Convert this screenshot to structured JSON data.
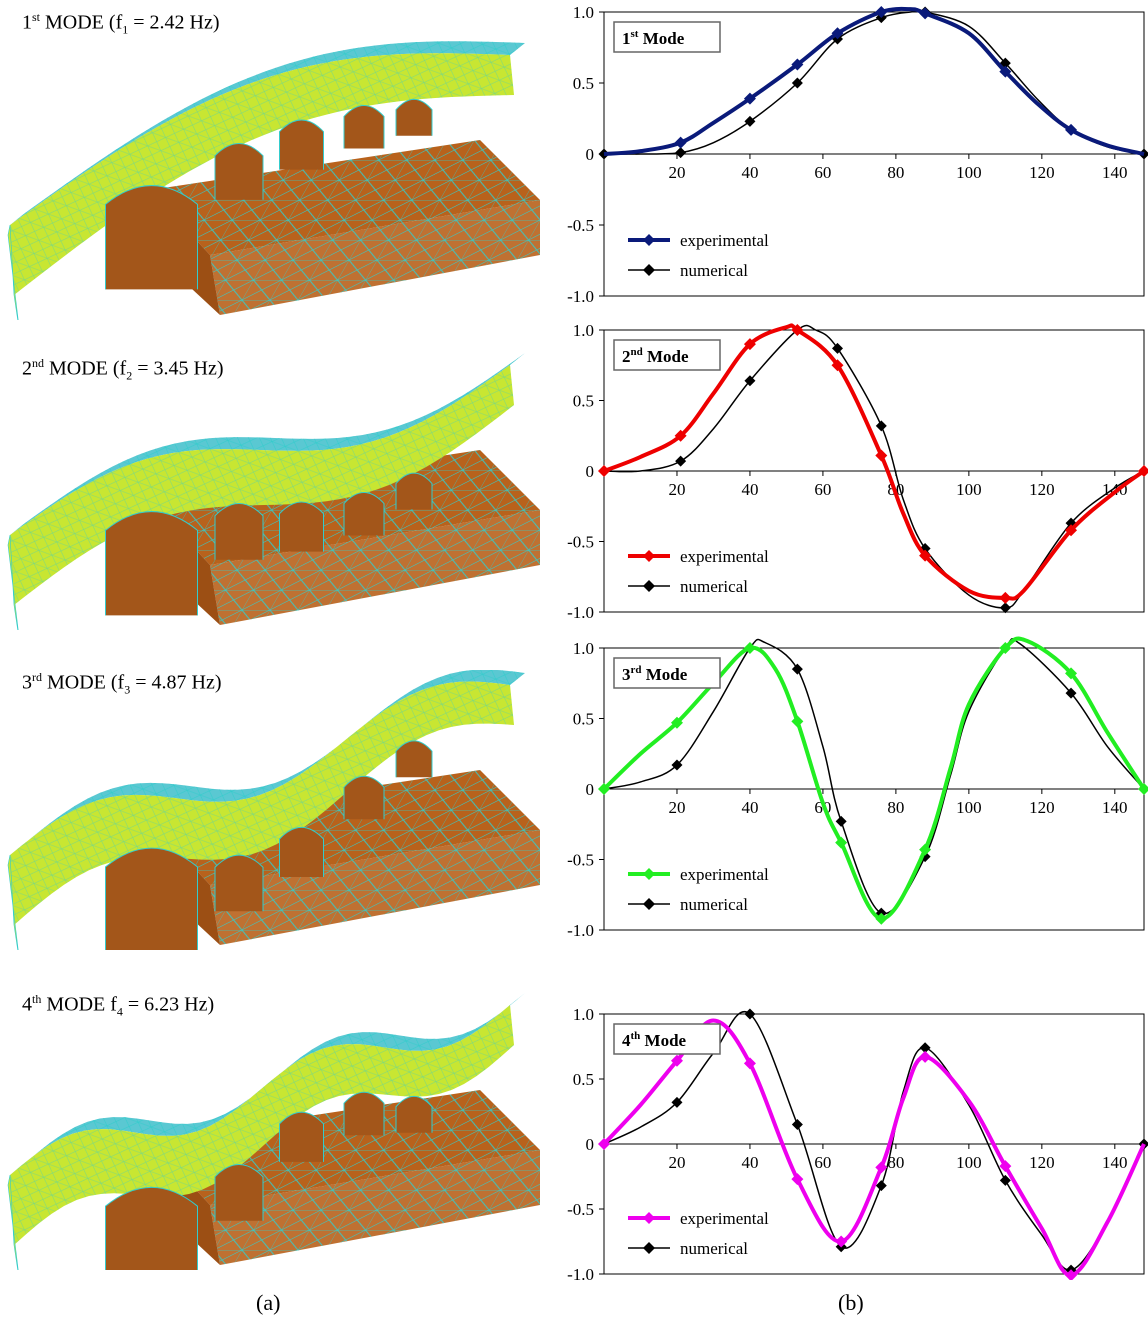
{
  "modes": [
    {
      "label": {
        "pre": "1",
        "sup": "st",
        "mid": " MODE (f",
        "sub": "1",
        "post": " = 2.42 Hz)"
      }
    },
    {
      "label": {
        "pre": "2",
        "sup": "nd",
        "mid": " MODE (f",
        "sub": "2",
        "post": " = 3.45 Hz)"
      }
    },
    {
      "label": {
        "pre": "3",
        "sup": "rd",
        "mid": " MODE (f",
        "sub": "3",
        "post": " = 4.87 Hz)"
      }
    },
    {
      "label": {
        "pre": "4",
        "sup": "th",
        "mid": " MODE f",
        "sub": "4",
        "post": " = 6.23 Hz)"
      }
    }
  ],
  "captions": {
    "a": "(a)",
    "b": "(b)"
  },
  "colors": {
    "mesh_edge": "#33cccc",
    "bridge_fill": "#c8e632",
    "bridge_deck": "#5ac8d2",
    "ground_fill": "#b8621c",
    "numerical": "#000000"
  },
  "chart_data": [
    {
      "type": "line",
      "title": {
        "pre": "1",
        "sup": "st",
        "post": " Mode"
      },
      "xlim": [
        0,
        148
      ],
      "ylim": [
        -1,
        1
      ],
      "xticks": [
        20,
        40,
        60,
        80,
        100,
        120,
        140
      ],
      "yticks": [
        1,
        0.5,
        0,
        -0.5,
        -1
      ],
      "yticklabels": [
        "1.0",
        "0.5",
        "0",
        "-0.5",
        "-1.0"
      ],
      "legend": "bottom-left",
      "series": [
        {
          "name": "experimental",
          "color": "#0a1a7a",
          "x": [
            0,
            10,
            21,
            30,
            40,
            53,
            64,
            76,
            84,
            88,
            100,
            110,
            119,
            128,
            138,
            148
          ],
          "y": [
            0,
            0.02,
            0.08,
            0.22,
            0.39,
            0.63,
            0.85,
            1.0,
            1.02,
            0.99,
            0.85,
            0.58,
            0.35,
            0.17,
            0.06,
            0
          ],
          "markers": [
            21,
            40,
            53,
            64,
            76,
            88,
            110,
            128
          ]
        },
        {
          "name": "numerical",
          "color": "#000000",
          "x": [
            0,
            10,
            21,
            30,
            40,
            53,
            64,
            76,
            84,
            88,
            100,
            110,
            119,
            128,
            138,
            148
          ],
          "y": [
            0,
            0.0,
            0.01,
            0.08,
            0.23,
            0.5,
            0.81,
            0.96,
            1.0,
            1.0,
            0.9,
            0.64,
            0.38,
            0.17,
            0.05,
            0
          ],
          "markers": [
            0,
            21,
            40,
            53,
            64,
            76,
            88,
            110,
            128,
            148
          ]
        }
      ]
    },
    {
      "type": "line",
      "title": {
        "pre": "2",
        "sup": "nd",
        "post": " Mode"
      },
      "xlim": [
        0,
        148
      ],
      "ylim": [
        -1,
        1
      ],
      "xticks": [
        20,
        40,
        60,
        80,
        100,
        120,
        140
      ],
      "yticks": [
        1,
        0.5,
        0,
        -0.5,
        -1
      ],
      "yticklabels": [
        "1.0",
        "0.5",
        "0",
        "-0.5",
        "-1.0"
      ],
      "legend": "bottom-left",
      "series": [
        {
          "name": "experimental",
          "color": "#ee0000",
          "x": [
            0,
            10,
            21,
            30,
            40,
            50,
            53,
            64,
            76,
            82,
            88,
            100,
            110,
            115,
            128,
            140,
            148
          ],
          "y": [
            0,
            0.1,
            0.25,
            0.55,
            0.9,
            1.02,
            1.0,
            0.75,
            0.11,
            -0.3,
            -0.6,
            -0.85,
            -0.9,
            -0.85,
            -0.42,
            -0.15,
            0
          ],
          "markers": [
            0,
            21,
            40,
            53,
            64,
            76,
            88,
            110,
            128,
            148
          ]
        },
        {
          "name": "numerical",
          "color": "#000000",
          "x": [
            0,
            10,
            21,
            30,
            40,
            53,
            58,
            64,
            76,
            82,
            88,
            100,
            110,
            115,
            128,
            140,
            148
          ],
          "y": [
            0,
            0.0,
            0.07,
            0.3,
            0.64,
            1.0,
            1.0,
            0.87,
            0.32,
            -0.2,
            -0.55,
            -0.88,
            -0.97,
            -0.85,
            -0.37,
            -0.12,
            0
          ],
          "markers": [
            0,
            21,
            40,
            53,
            64,
            76,
            88,
            110,
            128,
            148
          ]
        }
      ]
    },
    {
      "type": "line",
      "title": {
        "pre": "3",
        "sup": "rd",
        "post": " Mode"
      },
      "xlim": [
        0,
        148
      ],
      "ylim": [
        -1,
        1
      ],
      "xticks": [
        20,
        40,
        60,
        80,
        100,
        120,
        140
      ],
      "yticks": [
        1,
        0.5,
        0,
        -0.5,
        -1
      ],
      "yticklabels": [
        "1.0",
        "0.5",
        "0",
        "-0.5",
        "-1.0"
      ],
      "legend": "bottom-left",
      "series": [
        {
          "name": "experimental",
          "color": "#22ee22",
          "x": [
            0,
            10,
            20,
            30,
            40,
            47,
            53,
            60,
            65,
            76,
            88,
            95,
            100,
            110,
            116,
            128,
            138,
            148
          ],
          "y": [
            0,
            0.25,
            0.47,
            0.75,
            1.0,
            0.85,
            0.48,
            -0.1,
            -0.38,
            -0.92,
            -0.43,
            0.15,
            0.6,
            1.0,
            1.05,
            0.82,
            0.4,
            0
          ],
          "markers": [
            0,
            20,
            40,
            53,
            65,
            76,
            88,
            110,
            128,
            148
          ]
        },
        {
          "name": "numerical",
          "color": "#000000",
          "x": [
            0,
            10,
            20,
            30,
            40,
            44,
            53,
            60,
            65,
            76,
            88,
            95,
            100,
            110,
            114,
            128,
            138,
            148
          ],
          "y": [
            0,
            0.05,
            0.17,
            0.55,
            1.0,
            1.04,
            0.85,
            0.3,
            -0.23,
            -0.88,
            -0.48,
            0.1,
            0.55,
            1.0,
            1.03,
            0.68,
            0.3,
            0
          ],
          "markers": [
            0,
            20,
            40,
            53,
            65,
            76,
            88,
            110,
            128,
            148
          ]
        }
      ]
    },
    {
      "type": "line",
      "title": {
        "pre": "4",
        "sup": "th",
        "post": " Mode"
      },
      "xlim": [
        0,
        148
      ],
      "ylim": [
        -1,
        1
      ],
      "xticks": [
        20,
        40,
        60,
        80,
        100,
        120,
        140
      ],
      "yticks": [
        1,
        0.5,
        0,
        -0.5,
        -1
      ],
      "yticklabels": [
        "1.0",
        "0.5",
        "0",
        "-0.5",
        "-1.0"
      ],
      "legend": "bottom-left",
      "series": [
        {
          "name": "experimental",
          "color": "#ee00ee",
          "x": [
            0,
            10,
            20,
            30,
            40,
            53,
            65,
            76,
            82,
            88,
            100,
            110,
            120,
            128,
            138,
            148
          ],
          "y": [
            0,
            0.3,
            0.64,
            0.95,
            0.62,
            -0.27,
            -0.75,
            -0.18,
            0.35,
            0.67,
            0.33,
            -0.17,
            -0.65,
            -1.01,
            -0.6,
            0
          ],
          "markers": [
            0,
            20,
            40,
            53,
            65,
            76,
            88,
            110,
            128
          ]
        },
        {
          "name": "numerical",
          "color": "#000000",
          "x": [
            0,
            10,
            20,
            30,
            40,
            53,
            65,
            76,
            82,
            88,
            100,
            110,
            120,
            128,
            138,
            148
          ],
          "y": [
            0,
            0.13,
            0.32,
            0.7,
            1.0,
            0.15,
            -0.79,
            -0.32,
            0.4,
            0.74,
            0.3,
            -0.28,
            -0.7,
            -0.97,
            -0.6,
            0
          ],
          "markers": [
            0,
            20,
            40,
            53,
            65,
            76,
            88,
            110,
            128,
            148
          ]
        }
      ]
    }
  ]
}
